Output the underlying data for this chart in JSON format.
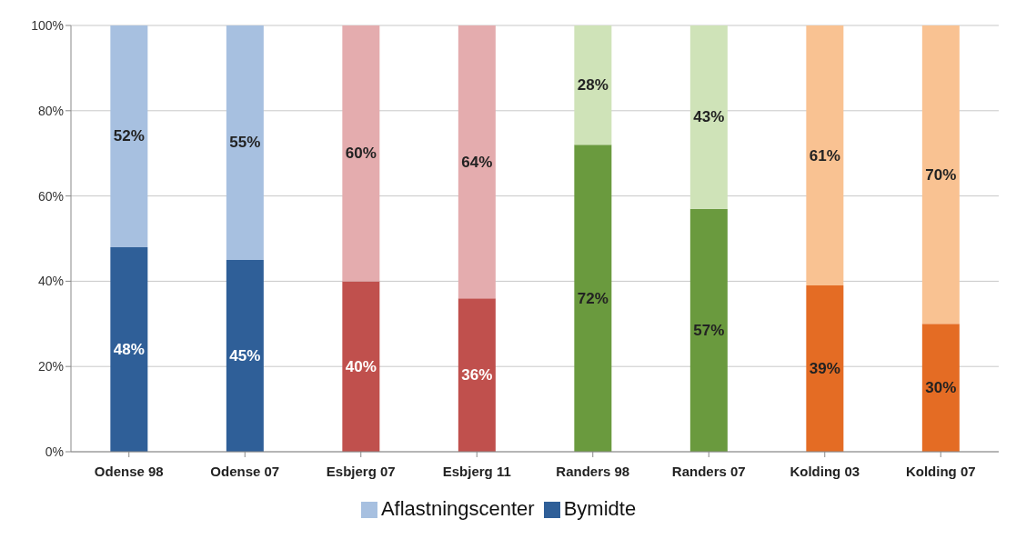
{
  "chart_data": {
    "type": "bar",
    "stacked": true,
    "categories": [
      "Odense 98",
      "Odense 07",
      "Esbjerg 07",
      "Esbjerg 11",
      "Randers 98",
      "Randers 07",
      "Kolding 03",
      "Kolding 07"
    ],
    "series": [
      {
        "name": "Bymidte",
        "color": "#2f5f98",
        "colors": [
          "#2f5f98",
          "#2f5f98",
          "#c0504d",
          "#c0504d",
          "#6a9a3e",
          "#6a9a3e",
          "#e46c24",
          "#e46c24"
        ],
        "values": [
          48,
          45,
          40,
          36,
          72,
          57,
          39,
          30
        ],
        "value_labels": [
          "48%",
          "45%",
          "40%",
          "36%",
          "72%",
          "57%",
          "39%",
          "30%"
        ]
      },
      {
        "name": "Aflastningscenter",
        "color": "#a7c0e0",
        "colors": [
          "#a7c0e0",
          "#a7c0e0",
          "#e4acae",
          "#e4acae",
          "#cfe3b8",
          "#cfe3b8",
          "#f9c292",
          "#f9c292"
        ],
        "values": [
          52,
          55,
          60,
          64,
          28,
          43,
          61,
          70
        ],
        "value_labels": [
          "52%",
          "55%",
          "60%",
          "64%",
          "28%",
          "43%",
          "61%",
          "70%"
        ]
      }
    ],
    "ylim": [
      0,
      100
    ],
    "yticks": [
      {
        "value": 0,
        "label": "0%"
      },
      {
        "value": 20,
        "label": "20%"
      },
      {
        "value": 40,
        "label": "40%"
      },
      {
        "value": 60,
        "label": "60%"
      },
      {
        "value": 80,
        "label": "80%"
      },
      {
        "value": 100,
        "label": "100%"
      }
    ],
    "grid": "y",
    "legend": "bottom"
  }
}
